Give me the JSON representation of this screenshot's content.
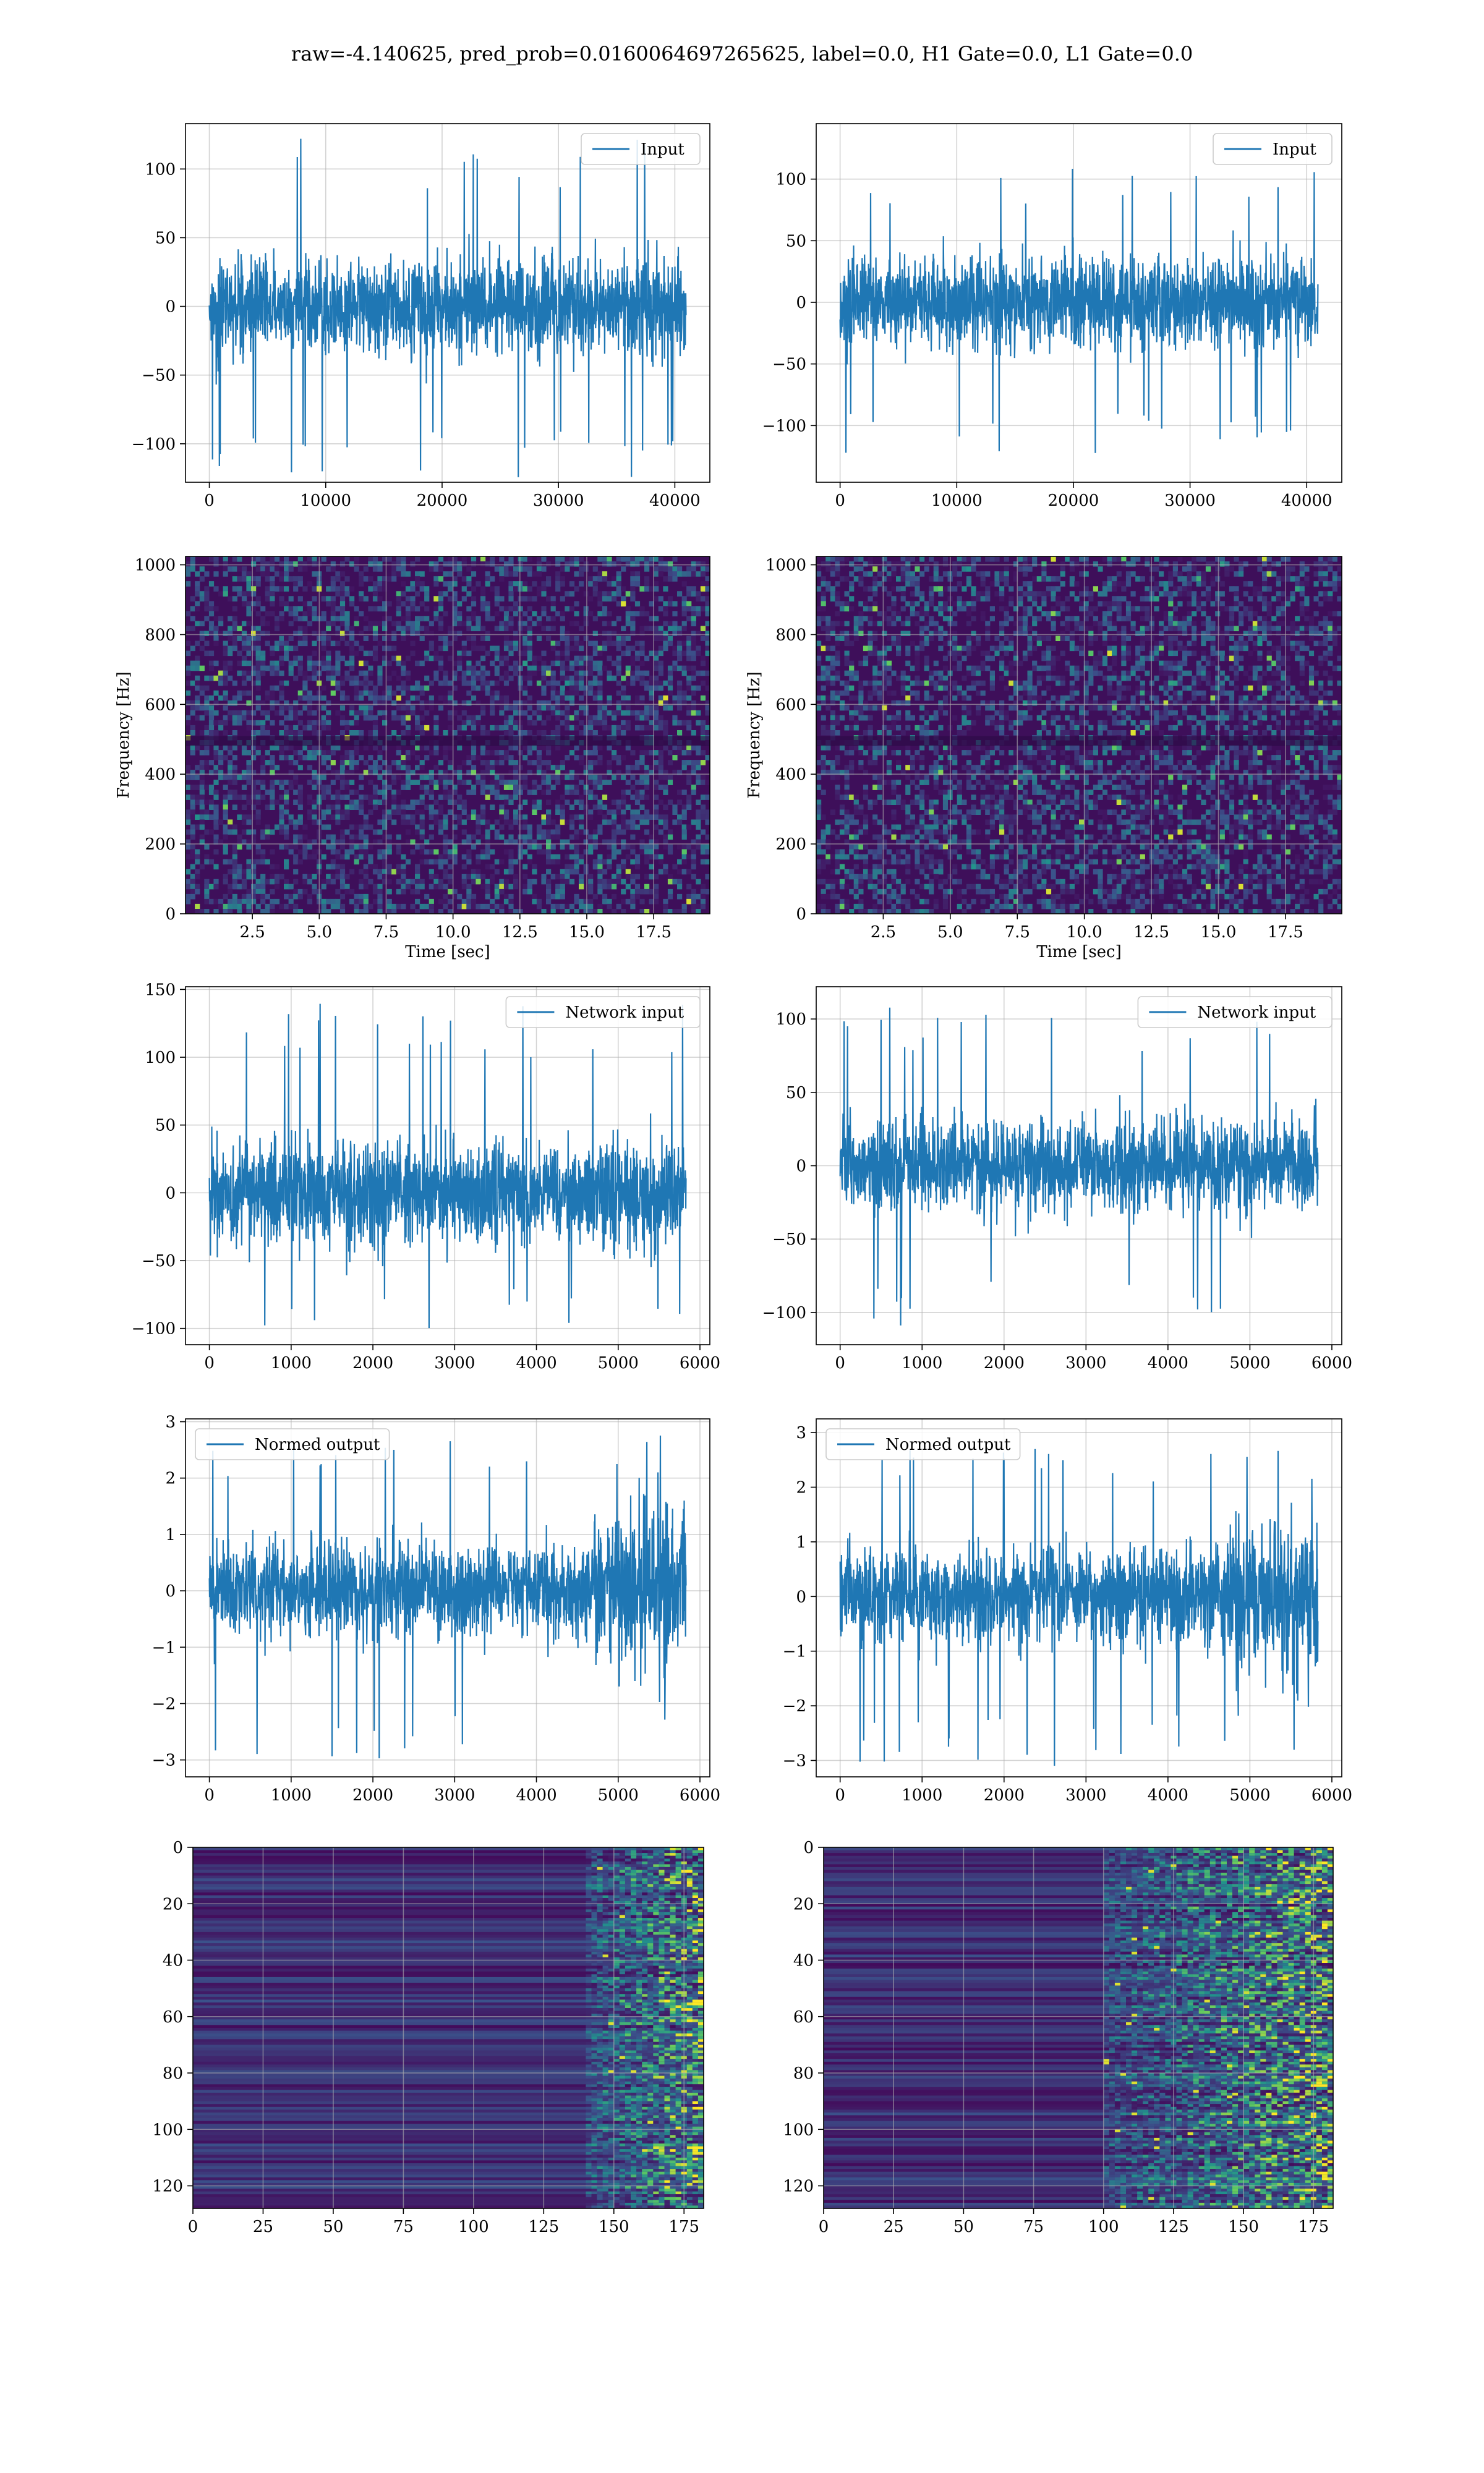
{
  "figure": {
    "suptitle": "raw=-4.140625, pred_prob=0.0160064697265625, label=0.0, H1 Gate=0.0, L1 Gate=0.0"
  },
  "colors": {
    "line": "#1f77b4",
    "grid": "#b0b0b0",
    "axes": "#000000"
  },
  "chart_data": [
    {
      "type": "line",
      "panel": "row1-left",
      "title": "",
      "legend": "top-right",
      "grid": true,
      "series": [
        {
          "name": "Input",
          "n": 40960,
          "y_range": [
            -125,
            122
          ]
        }
      ],
      "xlim": [
        -2048,
        43008
      ],
      "ylim": [
        -128,
        133
      ],
      "xticks": [
        0,
        10000,
        20000,
        30000,
        40000
      ],
      "yticks": [
        -100,
        -50,
        0,
        50,
        100
      ],
      "xlabel": "",
      "ylabel": ""
    },
    {
      "type": "line",
      "panel": "row1-right",
      "title": "",
      "legend": "top-right",
      "grid": true,
      "series": [
        {
          "name": "Input",
          "n": 40960,
          "y_range": [
            -129,
            114
          ]
        }
      ],
      "xlim": [
        -2048,
        43008
      ],
      "ylim": [
        -146,
        145
      ],
      "xticks": [
        0,
        10000,
        20000,
        30000,
        40000
      ],
      "yticks": [
        -100,
        -50,
        0,
        50,
        100
      ],
      "xlabel": "",
      "ylabel": ""
    },
    {
      "type": "heatmap",
      "panel": "row2-left",
      "title": "",
      "grid": true,
      "colormap": "viridis",
      "xlim": [
        0,
        19.6
      ],
      "ylim": [
        0,
        1024
      ],
      "xticks": [
        2.5,
        5.0,
        7.5,
        10.0,
        12.5,
        15.0,
        17.5
      ],
      "yticks": [
        0,
        200,
        400,
        600,
        800,
        1000
      ],
      "xlabel": "Time [sec]",
      "ylabel": "Frequency [Hz]"
    },
    {
      "type": "heatmap",
      "panel": "row2-right",
      "title": "",
      "grid": true,
      "colormap": "viridis",
      "xlim": [
        0,
        19.6
      ],
      "ylim": [
        0,
        1024
      ],
      "xticks": [
        2.5,
        5.0,
        7.5,
        10.0,
        12.5,
        15.0,
        17.5
      ],
      "yticks": [
        0,
        200,
        400,
        600,
        800,
        1000
      ],
      "xlabel": "Time [sec]",
      "ylabel": "Frequency [Hz]"
    },
    {
      "type": "line",
      "panel": "row3-left",
      "title": "",
      "legend": "top-right",
      "grid": true,
      "series": [
        {
          "name": "Network input",
          "n": 5830,
          "y_range": [
            -100,
            140
          ]
        }
      ],
      "xlim": [
        -292,
        6121
      ],
      "ylim": [
        -112,
        152
      ],
      "xticks": [
        0,
        1000,
        2000,
        3000,
        4000,
        5000,
        6000
      ],
      "yticks": [
        -100,
        -50,
        0,
        50,
        100,
        150
      ],
      "xlabel": "",
      "ylabel": ""
    },
    {
      "type": "line",
      "panel": "row3-right",
      "title": "",
      "legend": "top-right",
      "grid": true,
      "series": [
        {
          "name": "Network input",
          "n": 5830,
          "y_range": [
            -110,
            110
          ]
        }
      ],
      "xlim": [
        -292,
        6121
      ],
      "ylim": [
        -122,
        122
      ],
      "xticks": [
        0,
        1000,
        2000,
        3000,
        4000,
        5000,
        6000
      ],
      "yticks": [
        -100,
        -50,
        0,
        50,
        100
      ],
      "xlabel": "",
      "ylabel": ""
    },
    {
      "type": "line",
      "panel": "row4-left",
      "title": "",
      "legend": "top-left",
      "grid": true,
      "series": [
        {
          "name": "Normed output",
          "n": 5830,
          "y_range": [
            -3.0,
            2.8
          ]
        }
      ],
      "xlim": [
        -292,
        6121
      ],
      "ylim": [
        -3.3,
        3.05
      ],
      "xticks": [
        0,
        1000,
        2000,
        3000,
        4000,
        5000,
        6000
      ],
      "yticks": [
        -3,
        -2,
        -1,
        0,
        1,
        2,
        3
      ],
      "xlabel": "",
      "ylabel": ""
    },
    {
      "type": "line",
      "panel": "row4-right",
      "title": "",
      "legend": "top-left",
      "grid": true,
      "series": [
        {
          "name": "Normed output",
          "n": 5830,
          "y_range": [
            -3.1,
            3.0
          ]
        }
      ],
      "xlim": [
        -292,
        6121
      ],
      "ylim": [
        -3.3,
        3.25
      ],
      "xticks": [
        0,
        1000,
        2000,
        3000,
        4000,
        5000,
        6000
      ],
      "yticks": [
        -3,
        -2,
        -1,
        0,
        1,
        2,
        3
      ],
      "xlabel": "",
      "ylabel": ""
    },
    {
      "type": "heatmap",
      "panel": "row5-left",
      "title": "",
      "grid": true,
      "colormap": "viridis",
      "xlim": [
        0,
        182
      ],
      "ylim": [
        128,
        0
      ],
      "xticks": [
        0,
        25,
        50,
        75,
        100,
        125,
        150,
        175
      ],
      "yticks": [
        0,
        20,
        40,
        60,
        80,
        100,
        120
      ],
      "xlabel": "",
      "ylabel": ""
    },
    {
      "type": "heatmap",
      "panel": "row5-right",
      "title": "",
      "grid": true,
      "colormap": "viridis",
      "xlim": [
        0,
        182
      ],
      "ylim": [
        128,
        0
      ],
      "xticks": [
        0,
        25,
        50,
        75,
        100,
        125,
        150,
        175
      ],
      "yticks": [
        0,
        20,
        40,
        60,
        80,
        100,
        120
      ],
      "xlabel": "",
      "ylabel": ""
    }
  ]
}
